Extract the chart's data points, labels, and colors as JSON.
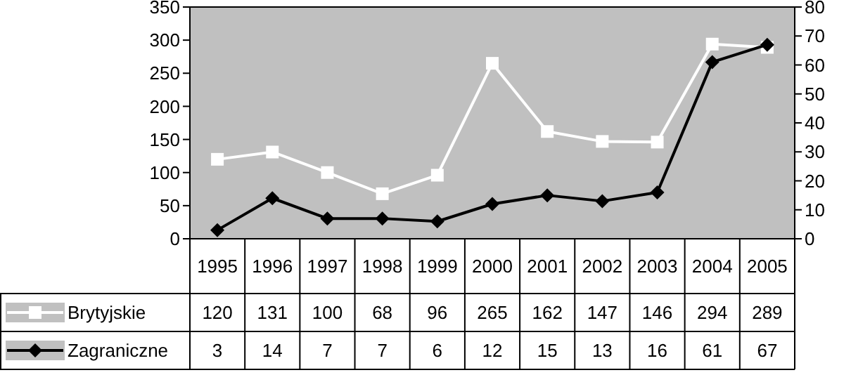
{
  "chart_data": {
    "type": "line",
    "categories": [
      "1995",
      "1996",
      "1997",
      "1998",
      "1999",
      "2000",
      "2001",
      "2002",
      "2003",
      "2004",
      "2005"
    ],
    "series": [
      {
        "name": "Brytyjskie",
        "color": "#ffffff",
        "marker": "square",
        "values": [
          120,
          131,
          100,
          68,
          96,
          265,
          162,
          147,
          146,
          294,
          289
        ]
      },
      {
        "name": "Zagraniczne",
        "color": "#000000",
        "marker": "diamond",
        "axis": "y2",
        "values": [
          3,
          14,
          7,
          7,
          6,
          12,
          15,
          13,
          16,
          61,
          67
        ]
      }
    ],
    "ylim": [
      0,
      350
    ],
    "yticks": [
      0,
      50,
      100,
      150,
      200,
      250,
      300,
      350
    ],
    "y2lim": [
      0,
      80
    ],
    "y2ticks": [
      0,
      10,
      20,
      30,
      40,
      50,
      60,
      70,
      80
    ],
    "data_labels": true,
    "legend": "bottom",
    "grid": false
  }
}
